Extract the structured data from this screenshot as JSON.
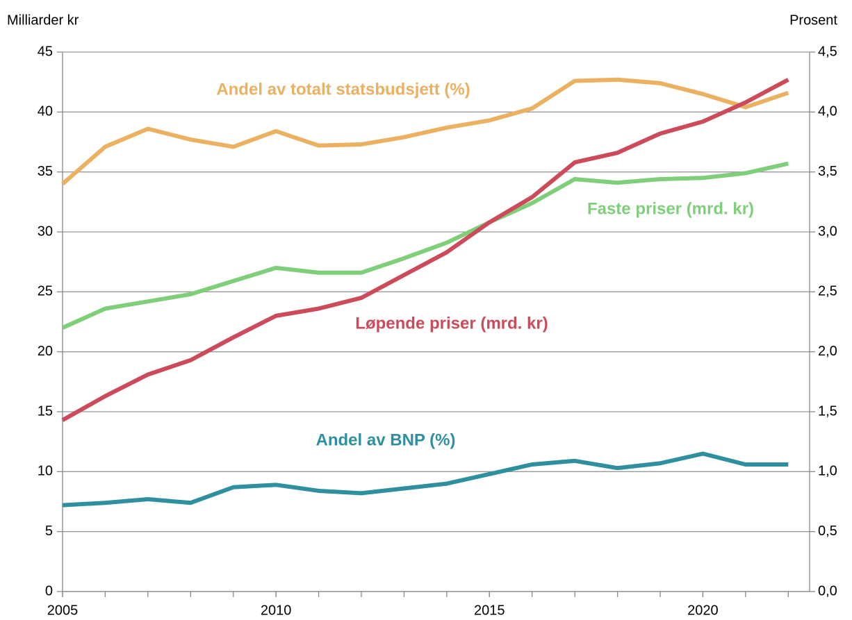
{
  "chart_data": {
    "type": "line",
    "y_label": "Milliarder kr",
    "y2_label": "Prosent",
    "x": [
      2005,
      2006,
      2007,
      2008,
      2009,
      2010,
      2011,
      2012,
      2013,
      2014,
      2015,
      2016,
      2017,
      2018,
      2019,
      2020,
      2021,
      2022
    ],
    "xlim": [
      2005,
      2022.5
    ],
    "xticks": [
      2005,
      2010,
      2015,
      2020
    ],
    "ylim": [
      0,
      45
    ],
    "yticks": [
      0,
      5,
      10,
      15,
      20,
      25,
      30,
      35,
      40,
      45
    ],
    "y2lim": [
      0,
      4.5
    ],
    "y2ticks": [
      {
        "value": 0,
        "label": "0,0"
      },
      {
        "value": 0.5,
        "label": "0,5"
      },
      {
        "value": 1,
        "label": "1,0"
      },
      {
        "value": 1.5,
        "label": "1,5"
      },
      {
        "value": 2,
        "label": "2,0"
      },
      {
        "value": 2.5,
        "label": "2,5"
      },
      {
        "value": 3,
        "label": "3,0"
      },
      {
        "value": 3.5,
        "label": "3,5"
      },
      {
        "value": 4,
        "label": "4,0"
      },
      {
        "value": 4.5,
        "label": "4,5"
      }
    ],
    "grid": true,
    "series": [
      {
        "name": "Andel av totalt statsbudsjett (%)",
        "color": "#ebb060",
        "axis": "y2",
        "values": [
          3.4,
          3.71,
          3.86,
          3.77,
          3.71,
          3.84,
          3.72,
          3.73,
          3.79,
          3.87,
          3.93,
          4.03,
          4.26,
          4.27,
          4.24,
          4.15,
          4.04,
          4.16
        ]
      },
      {
        "name": "Faste priser (mrd. kr)",
        "color": "#7fcf7a",
        "values": [
          22.0,
          23.6,
          24.2,
          24.8,
          25.9,
          27.0,
          26.6,
          26.6,
          27.8,
          29.1,
          30.8,
          32.4,
          34.4,
          34.1,
          34.4,
          34.5,
          34.9,
          35.7
        ]
      },
      {
        "name": "Løpende priser (mrd. kr)",
        "color": "#cc4a5a",
        "values": [
          14.3,
          16.3,
          18.1,
          19.3,
          21.2,
          23.0,
          23.6,
          24.5,
          26.4,
          28.3,
          30.8,
          32.9,
          35.8,
          36.6,
          38.2,
          39.2,
          40.8,
          42.7
        ]
      },
      {
        "name": "Andel av BNP (%)",
        "color": "#2e8f9e",
        "axis": "y2",
        "values": [
          0.72,
          0.74,
          0.77,
          0.74,
          0.87,
          0.89,
          0.84,
          0.82,
          0.86,
          0.9,
          0.98,
          1.06,
          1.09,
          1.03,
          1.07,
          1.15,
          1.06,
          1.06
        ]
      }
    ]
  }
}
